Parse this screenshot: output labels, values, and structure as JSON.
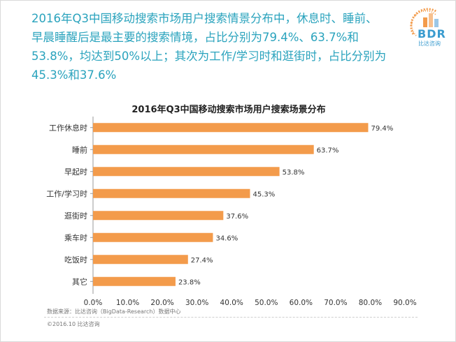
{
  "headline": {
    "lines": [
      "2016年Q3中国移动搜索市场用户搜索情景分布中，休息时、睡前、",
      "早晨睡醒后是最主要的搜索情境，占比分别为79.4%、63.7%和",
      "53.8%，均达到50%以上；其次为工作/学习时和逛街时，占比分别为",
      "45.3%和37.6%"
    ]
  },
  "logo": {
    "text": "BDR",
    "sub": "比达咨询"
  },
  "chart_data": {
    "type": "bar",
    "orientation": "horizontal",
    "title": "2016年Q3中国移动搜索市场用户搜索场景分布",
    "categories": [
      "工作休息时",
      "睡前",
      "早起时",
      "工作/学习时",
      "逛街时",
      "乘车时",
      "吃饭时",
      "其它"
    ],
    "values": [
      79.4,
      63.7,
      53.8,
      45.3,
      37.6,
      34.6,
      27.4,
      23.8
    ],
    "value_labels": [
      "79.4%",
      "63.7%",
      "53.8%",
      "45.3%",
      "37.6%",
      "34.6%",
      "27.4%",
      "23.8%"
    ],
    "x_ticks": [
      "0.0%",
      "10.0%",
      "20.0%",
      "30.0%",
      "40.0%",
      "50.0%",
      "60.0%",
      "70.0%",
      "80.0%",
      "90.0%"
    ],
    "xlim": [
      0,
      90
    ],
    "bar_color": "#f39b4b",
    "grid": false,
    "legend": "none"
  },
  "footer": {
    "source": "数据来源：比达咨询（BigData-Research）数据中心",
    "copyright": "©2016.10  比达咨询"
  }
}
